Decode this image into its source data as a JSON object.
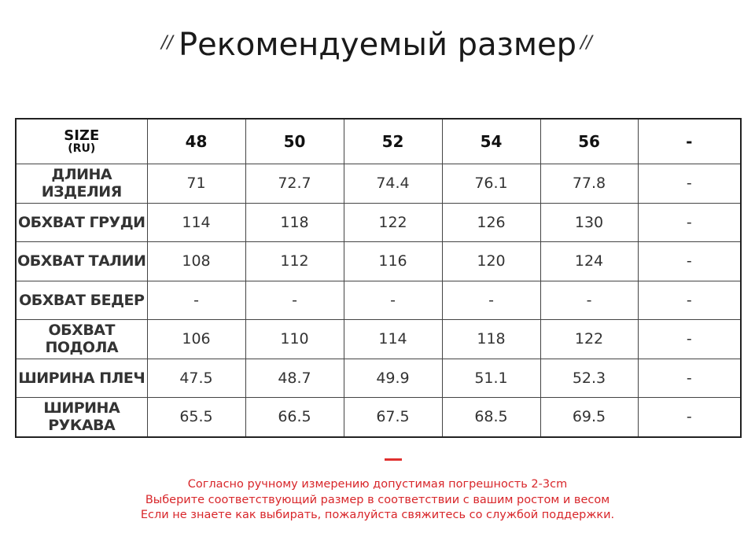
{
  "title": "Рекомендуемый размер",
  "title_marks": [
    "//",
    "//"
  ],
  "table": {
    "header": {
      "size": "SIZE",
      "region": "(RU)",
      "columns": [
        "48",
        "50",
        "52",
        "54",
        "56",
        "-"
      ]
    },
    "rows": [
      {
        "label": "ДЛИНА ИЗДЕЛИЯ",
        "cells": [
          "71",
          "72.7",
          "74.4",
          "76.1",
          "77.8",
          "-"
        ]
      },
      {
        "label": "ОБХВАТ ГРУДИ",
        "cells": [
          "114",
          "118",
          "122",
          "126",
          "130",
          "-"
        ]
      },
      {
        "label": "ОБХВАТ ТАЛИИ",
        "cells": [
          "108",
          "112",
          "116",
          "120",
          "124",
          "-"
        ]
      },
      {
        "label": "ОБХВАТ БЕДЕР",
        "cells": [
          "-",
          "-",
          "-",
          "-",
          "-",
          "-"
        ]
      },
      {
        "label": "ОБХВАТ ПОДОЛА",
        "cells": [
          "106",
          "110",
          "114",
          "118",
          "122",
          "-"
        ]
      },
      {
        "label": "ШИРИНА ПЛЕЧ",
        "cells": [
          "47.5",
          "48.7",
          "49.9",
          "51.1",
          "52.3",
          "-"
        ]
      },
      {
        "label": "ШИРИНА РУКАВА",
        "cells": [
          "65.5",
          "66.5",
          "67.5",
          "68.5",
          "69.5",
          "-"
        ]
      }
    ]
  },
  "notes": [
    "Согласно ручному измерению допустимая погрешность 2-3cm",
    "Выберите соответствующий размер в соответствии с вашим ростом и весом",
    "Если не знаете как выбирать, пожалуйста свяжитесь со службой поддержки."
  ]
}
